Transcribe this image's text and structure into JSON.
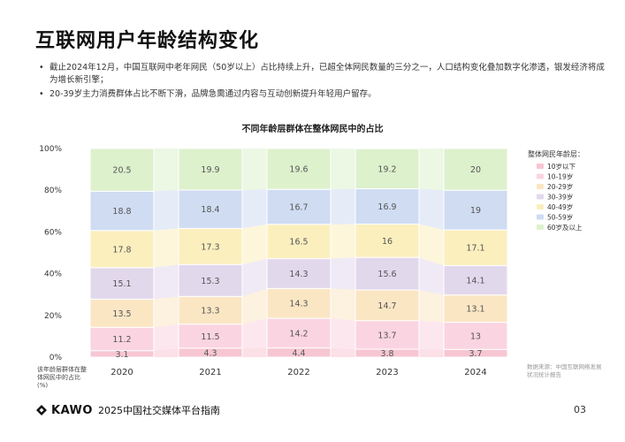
{
  "page": {
    "title": "互联网用户年龄结构变化",
    "bullets": [
      "截止2024年12月，中国互联网中老年网民（50岁以上）占比持续上升，已超全体网民数量的三分之一，人口结构变化叠加数字化渗透，银发经济将成为增长新引擎；",
      "20-39岁主力消费群体占比不断下滑，品牌急需通过内容与互动创新提升年轻用户留存。"
    ],
    "note": "该年龄层群体在整体网民中的占比(%)",
    "source": "数据来源：中国互联网络发展状况统计报告",
    "brand": "KAWO",
    "footer_text": "2025中国社交媒体平台指南",
    "page_number": "03"
  },
  "chart_data": {
    "type": "bar",
    "stacked": true,
    "title": "不同年龄层群体在整体网民中的占比",
    "categories": [
      "2020",
      "2021",
      "2022",
      "2023",
      "2024"
    ],
    "yticks": [
      "0%",
      "20%",
      "40%",
      "60%",
      "80%",
      "100%"
    ],
    "ylim": [
      0,
      100
    ],
    "legend_title": "整体网民年龄层：",
    "legend_position": "right",
    "series": [
      {
        "name": "10岁以下",
        "color": "#f7c6d3",
        "values": [
          3.1,
          4.3,
          4.4,
          3.8,
          3.7
        ]
      },
      {
        "name": "10-19岁",
        "color": "#fbd4e2",
        "values": [
          11.2,
          11.5,
          14.2,
          13.7,
          13.0
        ]
      },
      {
        "name": "20-29岁",
        "color": "#fbe6c4",
        "values": [
          13.5,
          13.3,
          14.3,
          14.7,
          13.1
        ]
      },
      {
        "name": "30-39岁",
        "color": "#e2d8ec",
        "values": [
          15.1,
          15.3,
          14.3,
          15.6,
          14.1
        ]
      },
      {
        "name": "40-49岁",
        "color": "#fbefbe",
        "values": [
          17.8,
          17.3,
          16.5,
          16.0,
          17.1
        ]
      },
      {
        "name": "50-59岁",
        "color": "#cfdcf2",
        "values": [
          18.8,
          18.4,
          16.7,
          16.9,
          19.0
        ]
      },
      {
        "name": "60岁及以上",
        "color": "#ddf1cd",
        "values": [
          20.5,
          19.9,
          19.6,
          19.2,
          20.0
        ]
      }
    ]
  }
}
